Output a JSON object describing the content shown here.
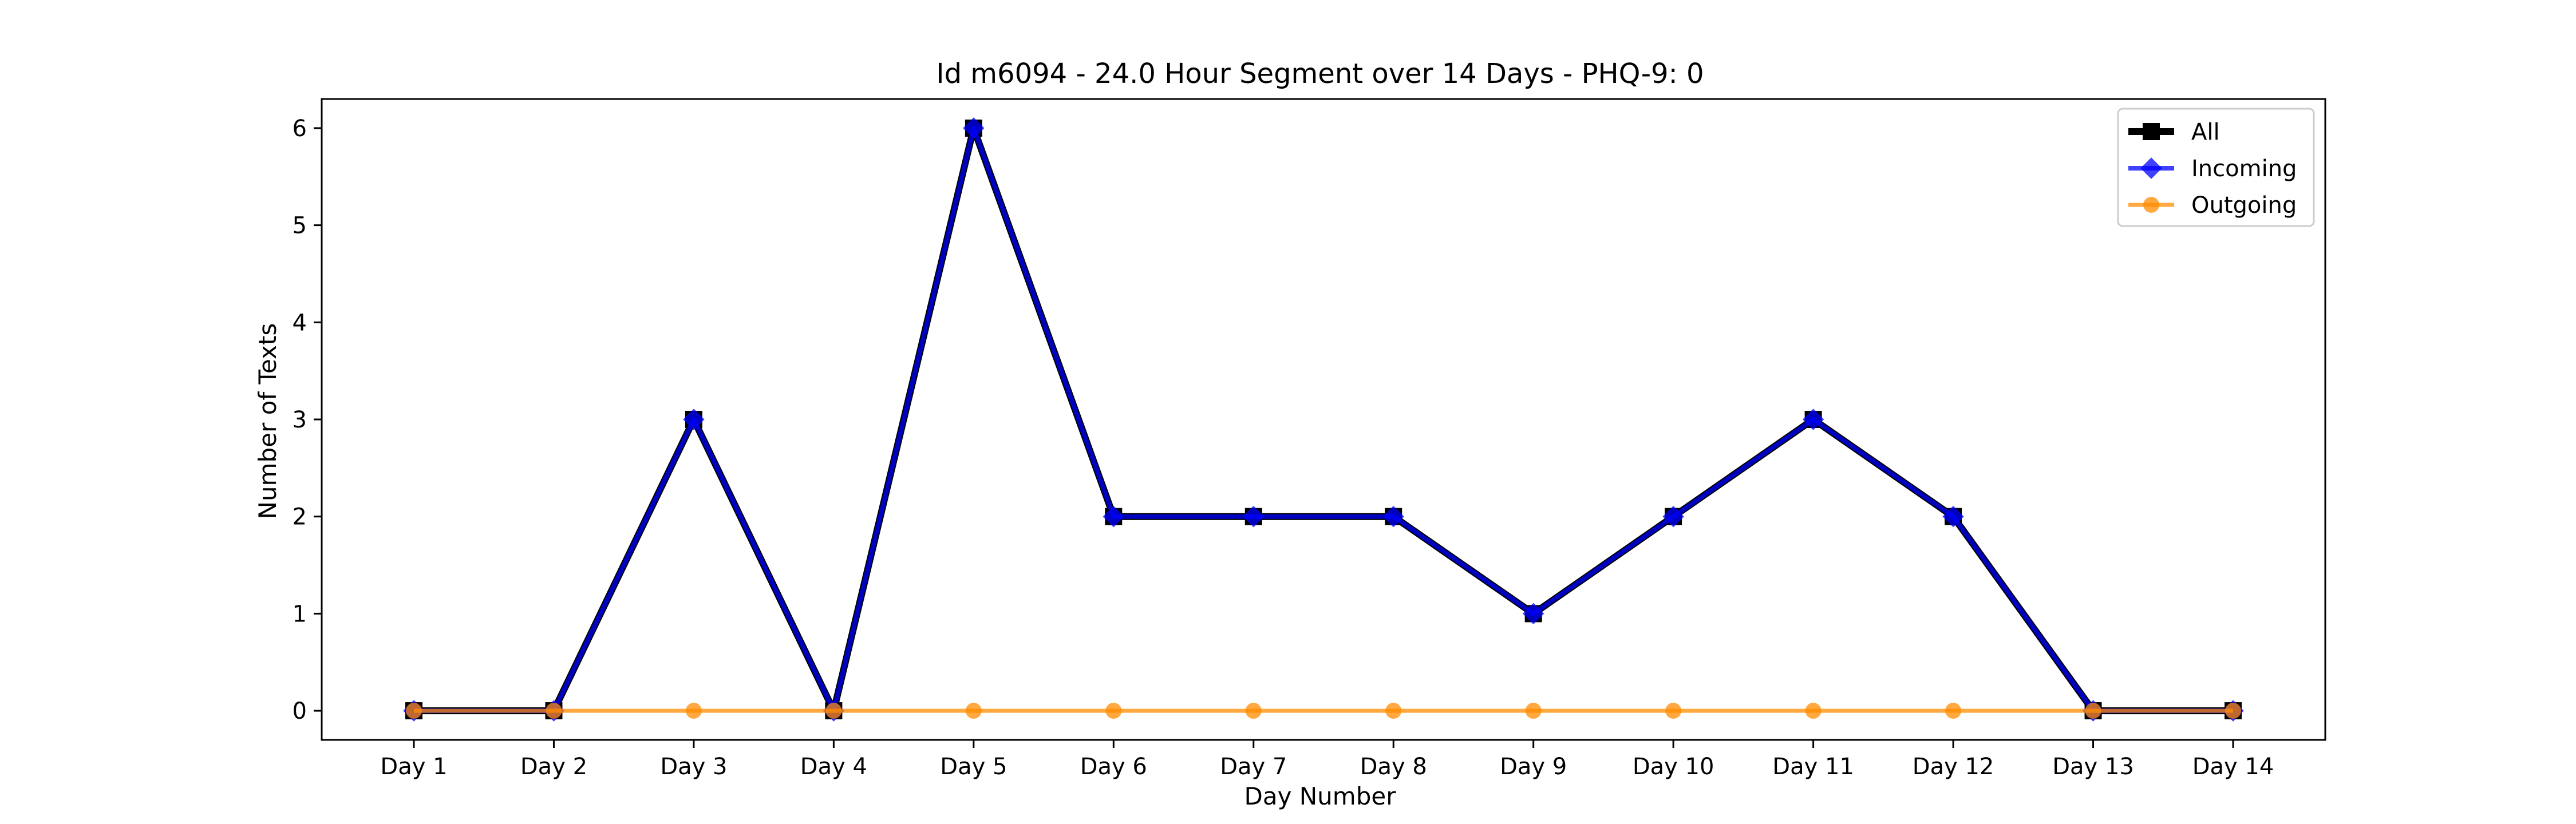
{
  "chart_data": {
    "type": "line",
    "title": "Id m6094 - 24.0 Hour Segment over 14 Days - PHQ-9: 0",
    "xlabel": "Day Number",
    "ylabel": "Number of Texts",
    "categories": [
      "Day 1",
      "Day 2",
      "Day 3",
      "Day 4",
      "Day 5",
      "Day 6",
      "Day 7",
      "Day 8",
      "Day 9",
      "Day 10",
      "Day 11",
      "Day 12",
      "Day 13",
      "Day 14"
    ],
    "ylim": [
      -0.3,
      6.3
    ],
    "yticks": [
      0,
      1,
      2,
      3,
      4,
      5,
      6
    ],
    "grid": false,
    "legend_position": "top-right",
    "series": [
      {
        "name": "All",
        "color": "#000000",
        "marker": "square",
        "values": [
          0,
          0,
          3,
          0,
          6,
          2,
          2,
          2,
          1,
          2,
          3,
          2,
          0,
          0
        ]
      },
      {
        "name": "Incoming",
        "color": "#0000ff",
        "marker": "diamond",
        "values": [
          0,
          0,
          3,
          0,
          6,
          2,
          2,
          2,
          1,
          2,
          3,
          2,
          0,
          0
        ]
      },
      {
        "name": "Outgoing",
        "color": "#ff8c00",
        "marker": "circle",
        "values": [
          0,
          0,
          0,
          0,
          0,
          0,
          0,
          0,
          0,
          0,
          0,
          0,
          0,
          0
        ]
      }
    ]
  }
}
